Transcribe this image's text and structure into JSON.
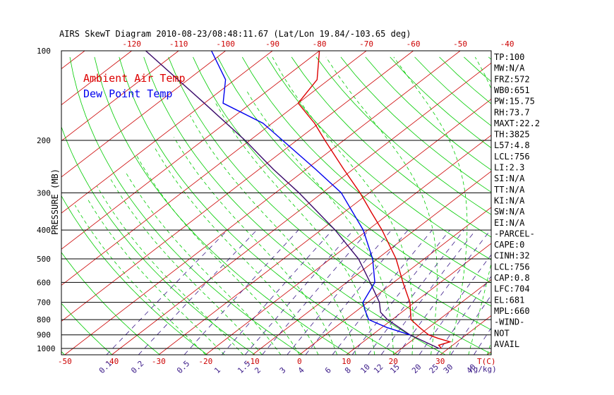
{
  "title": "AIRS SkewT Diagram 2010-08-23/08:48:11.67 (Lat/Lon 19.84/-103.65 deg)",
  "colors": {
    "isotherm": "#cc0000",
    "dry_adiabat": "#00cc00",
    "moist_adiabat": "#00cc00",
    "mixing_ratio": "#3a1a88",
    "temp_profile": "#dd0000",
    "dew_profile": "#0000ee",
    "parcel_profile": "#3a0a6a",
    "legend_temp": "#dd0000",
    "legend_dew": "#0000ee"
  },
  "chart_data": {
    "type": "skewt",
    "title": "AIRS SkewT Diagram 2010-08-23/08:48:11.67 (Lat/Lon 19.84/-103.65 deg)",
    "ylabel": "PRESSURE (MB)",
    "xlabel": "T(C)",
    "mixing_ratio_unit": "(g/kg)",
    "legend": [
      "Ambient Air Temp",
      "Dew Point Temp"
    ],
    "pressure_ticks": [
      100,
      200,
      300,
      400,
      500,
      600,
      700,
      800,
      900,
      1000
    ],
    "pressure_ticks_labeled": [
      "100",
      "200",
      "300",
      "400",
      "500",
      "600",
      "700",
      "800",
      "900",
      "1000"
    ],
    "temp_ticks_top": [
      -120,
      -110,
      -100,
      -90,
      -80,
      -70,
      -60,
      -50,
      -40
    ],
    "temp_ticks_bottom": [
      -50,
      -40,
      -30,
      -20,
      -10,
      0,
      10,
      20,
      30
    ],
    "mixing_ratio_ticks": [
      "0.1",
      "0.2",
      "0.5",
      "1",
      "1.5",
      "2",
      "3",
      "4",
      "6",
      "8",
      "10",
      "12",
      "15",
      "20",
      "25",
      "30",
      "40"
    ],
    "ambient_air_temp": [
      {
        "p": 1000,
        "t": 28.5
      },
      {
        "p": 975,
        "t": 27.0
      },
      {
        "p": 950,
        "t": 28.5
      },
      {
        "p": 925,
        "t": 25.0
      },
      {
        "p": 900,
        "t": 22.0
      },
      {
        "p": 875,
        "t": 20.0
      },
      {
        "p": 850,
        "t": 18.0
      },
      {
        "p": 800,
        "t": 14.0
      },
      {
        "p": 700,
        "t": 9.0
      },
      {
        "p": 600,
        "t": 2.0
      },
      {
        "p": 500,
        "t": -6.0
      },
      {
        "p": 400,
        "t": -17.0
      },
      {
        "p": 350,
        "t": -24.0
      },
      {
        "p": 300,
        "t": -32.0
      },
      {
        "p": 250,
        "t": -42.0
      },
      {
        "p": 200,
        "t": -54.0
      },
      {
        "p": 175,
        "t": -61.0
      },
      {
        "p": 150,
        "t": -70.0
      },
      {
        "p": 125,
        "t": -72.5
      },
      {
        "p": 100,
        "t": -80.0
      }
    ],
    "dew_point_temp": [
      {
        "p": 900,
        "t": 18.0
      },
      {
        "p": 850,
        "t": 11.0
      },
      {
        "p": 800,
        "t": 5.0
      },
      {
        "p": 750,
        "t": 2.0
      },
      {
        "p": 700,
        "t": -1.0
      },
      {
        "p": 600,
        "t": -4.0
      },
      {
        "p": 500,
        "t": -11.0
      },
      {
        "p": 400,
        "t": -21.0
      },
      {
        "p": 300,
        "t": -36.0
      },
      {
        "p": 250,
        "t": -48.0
      },
      {
        "p": 200,
        "t": -63.0
      },
      {
        "p": 175,
        "t": -72.0
      },
      {
        "p": 150,
        "t": -86.0
      },
      {
        "p": 125,
        "t": -92.0
      },
      {
        "p": 100,
        "t": -103.0
      }
    ],
    "parcel_temp": [
      {
        "p": 1000,
        "t": 28.0
      },
      {
        "p": 900,
        "t": 18.0
      },
      {
        "p": 800,
        "t": 9.0
      },
      {
        "p": 756,
        "t": 5.5
      },
      {
        "p": 700,
        "t": 2.5
      },
      {
        "p": 600,
        "t": -5.0
      },
      {
        "p": 500,
        "t": -14.0
      },
      {
        "p": 400,
        "t": -27.0
      },
      {
        "p": 300,
        "t": -45.0
      },
      {
        "p": 250,
        "t": -57.0
      },
      {
        "p": 200,
        "t": -71.0
      },
      {
        "p": 150,
        "t": -90.0
      },
      {
        "p": 100,
        "t": -117.0
      }
    ]
  },
  "side_panel": [
    "TP:100",
    "MW:N/A",
    "FRZ:572",
    "WB0:651",
    "PW:15.75",
    "RH:73.7",
    "MAXT:22.2",
    "TH:3825",
    "L57:4.8",
    "LCL:756",
    "LI:2.3",
    "SI:N/A",
    "TT:N/A",
    "KI:N/A",
    "SW:N/A",
    "EI:N/A",
    "-PARCEL-",
    "CAPE:0",
    "CINH:32",
    "LCL:756",
    "CAP:0.8",
    "LFC:704",
    "EL:681",
    "MPL:660",
    "-WIND-",
    "NOT",
    "AVAIL"
  ]
}
